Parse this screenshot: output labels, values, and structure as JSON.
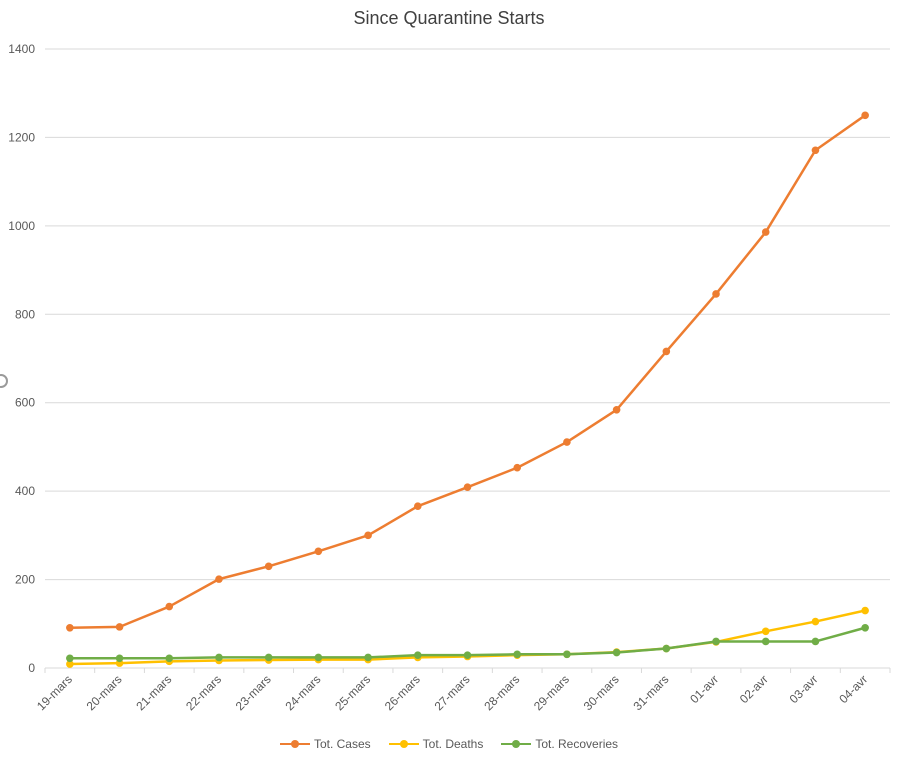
{
  "chart_data": {
    "type": "line",
    "title": "Since Quarantine Starts",
    "categories": [
      "19-mars",
      "20-mars",
      "21-mars",
      "22-mars",
      "23-mars",
      "24-mars",
      "25-mars",
      "26-mars",
      "27-mars",
      "28-mars",
      "29-mars",
      "30-mars",
      "31-mars",
      "01-avr",
      "02-avr",
      "03-avr",
      "04-avr"
    ],
    "ylim": [
      0,
      1400
    ],
    "yticks": [
      0,
      200,
      400,
      600,
      800,
      1000,
      1200,
      1400
    ],
    "grid": true,
    "legend_position": "bottom",
    "series": [
      {
        "name": "Tot. Cases",
        "color": "#ED7D31",
        "values": [
          91,
          93,
          139,
          201,
          230,
          264,
          300,
          366,
          409,
          453,
          511,
          584,
          716,
          846,
          986,
          1171,
          1250
        ]
      },
      {
        "name": "Tot. Deaths",
        "color": "#FFC000",
        "values": [
          9,
          11,
          15,
          17,
          18,
          19,
          19,
          24,
          26,
          29,
          31,
          36,
          44,
          59,
          83,
          105,
          130
        ]
      },
      {
        "name": "Tot. Recoveries",
        "color": "#70AD47",
        "values": [
          22,
          22,
          22,
          24,
          24,
          24,
          24,
          29,
          29,
          31,
          31,
          35,
          44,
          60,
          60,
          60,
          91
        ]
      }
    ]
  }
}
